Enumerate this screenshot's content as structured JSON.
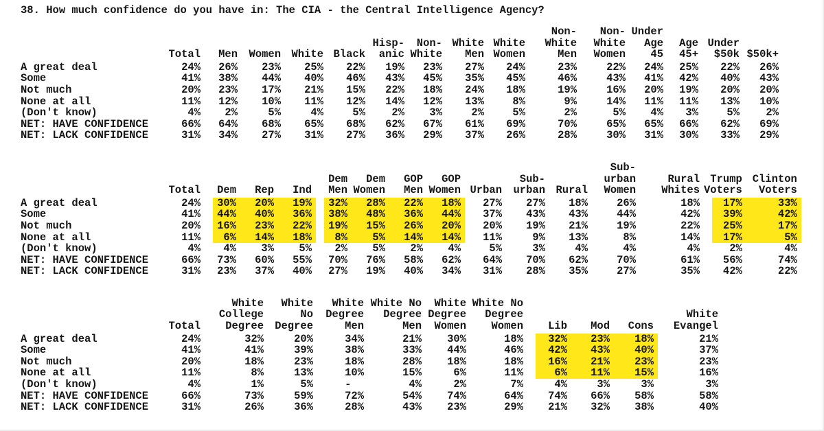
{
  "title": "38. How much confidence do you have in: The CIA - the Central Intelligence Agency?",
  "highlight_color": "#ffe719",
  "tables": [
    {
      "name": "demographics",
      "columns": [
        [
          "Total"
        ],
        [
          "Men"
        ],
        [
          "Women"
        ],
        [
          "White"
        ],
        [
          "Black"
        ],
        [
          "Hisp-",
          "anic"
        ],
        [
          "Non-",
          "White"
        ],
        [
          "White",
          "Men"
        ],
        [
          "White",
          "Women"
        ],
        [
          "Non-",
          "White",
          "Men"
        ],
        [
          "Non-",
          "White",
          "Women"
        ],
        [
          "Under",
          "Age 45"
        ],
        [
          "Age",
          "45+"
        ],
        [
          "Under",
          "$50k"
        ],
        [
          "$50k+"
        ]
      ],
      "rows": [
        {
          "label": "A great deal",
          "cells": [
            "24%",
            "26%",
            "23%",
            "25%",
            "22%",
            "19%",
            "23%",
            "27%",
            "24%",
            "23%",
            "22%",
            "24%",
            "25%",
            "22%",
            "26%"
          ]
        },
        {
          "label": "Some",
          "cells": [
            "41%",
            "38%",
            "44%",
            "40%",
            "46%",
            "43%",
            "45%",
            "35%",
            "45%",
            "46%",
            "43%",
            "41%",
            "42%",
            "40%",
            "43%"
          ]
        },
        {
          "label": "Not much",
          "cells": [
            "20%",
            "23%",
            "17%",
            "21%",
            "15%",
            "22%",
            "18%",
            "24%",
            "18%",
            "19%",
            "16%",
            "20%",
            "19%",
            "20%",
            "20%"
          ]
        },
        {
          "label": "None at all",
          "cells": [
            "11%",
            "12%",
            "10%",
            "11%",
            "12%",
            "14%",
            "12%",
            "13%",
            "8%",
            "9%",
            "14%",
            "11%",
            "11%",
            "13%",
            "10%"
          ]
        },
        {
          "label": "(Don't know)",
          "cells": [
            "4%",
            "2%",
            "5%",
            "4%",
            "5%",
            "2%",
            "3%",
            "2%",
            "5%",
            "2%",
            "5%",
            "4%",
            "3%",
            "5%",
            "2%"
          ]
        },
        {
          "label": "NET: HAVE CONFIDENCE",
          "cells": [
            "66%",
            "64%",
            "68%",
            "65%",
            "68%",
            "62%",
            "67%",
            "61%",
            "69%",
            "70%",
            "65%",
            "65%",
            "66%",
            "62%",
            "69%"
          ]
        },
        {
          "label": "NET: LACK CONFIDENCE",
          "cells": [
            "31%",
            "34%",
            "27%",
            "31%",
            "27%",
            "36%",
            "29%",
            "37%",
            "26%",
            "28%",
            "30%",
            "31%",
            "30%",
            "33%",
            "29%"
          ]
        }
      ],
      "highlights": null
    },
    {
      "name": "politics-geography",
      "columns": [
        [
          "Total"
        ],
        [
          "Dem"
        ],
        [
          "Rep"
        ],
        [
          "Ind"
        ],
        [
          "Dem",
          "Men"
        ],
        [
          "Dem",
          "Women"
        ],
        [
          "GOP",
          "Men"
        ],
        [
          "GOP",
          "Women"
        ],
        [
          "Urban"
        ],
        [
          "Sub-",
          "urban"
        ],
        [
          "Rural"
        ],
        [
          "Sub-",
          "urban",
          "Women"
        ],
        [
          "Rural",
          "Whites"
        ],
        [
          "Trump",
          "Voters"
        ],
        [
          "Clinton",
          "Voters"
        ]
      ],
      "rows": [
        {
          "label": "A great deal",
          "cells": [
            "24%",
            "30%",
            "20%",
            "19%",
            "32%",
            "28%",
            "22%",
            "18%",
            "27%",
            "27%",
            "18%",
            "26%",
            "18%",
            "17%",
            "33%"
          ]
        },
        {
          "label": "Some",
          "cells": [
            "41%",
            "44%",
            "40%",
            "36%",
            "38%",
            "48%",
            "36%",
            "44%",
            "37%",
            "43%",
            "43%",
            "44%",
            "42%",
            "39%",
            "42%"
          ]
        },
        {
          "label": "Not much",
          "cells": [
            "20%",
            "16%",
            "23%",
            "22%",
            "19%",
            "15%",
            "26%",
            "20%",
            "20%",
            "19%",
            "21%",
            "19%",
            "22%",
            "25%",
            "17%"
          ]
        },
        {
          "label": "None at all",
          "cells": [
            "11%",
            "6%",
            "14%",
            "18%",
            "8%",
            "5%",
            "14%",
            "14%",
            "11%",
            "9%",
            "13%",
            "8%",
            "14%",
            "17%",
            "5%"
          ]
        },
        {
          "label": "(Don't know)",
          "cells": [
            "4%",
            "4%",
            "3%",
            "5%",
            "2%",
            "5%",
            "2%",
            "4%",
            "5%",
            "3%",
            "4%",
            "4%",
            "4%",
            "2%",
            "4%"
          ]
        },
        {
          "label": "NET: HAVE CONFIDENCE",
          "cells": [
            "66%",
            "73%",
            "60%",
            "55%",
            "70%",
            "76%",
            "58%",
            "62%",
            "64%",
            "70%",
            "62%",
            "70%",
            "61%",
            "56%",
            "74%"
          ]
        },
        {
          "label": "NET: LACK CONFIDENCE",
          "cells": [
            "31%",
            "23%",
            "37%",
            "40%",
            "27%",
            "19%",
            "40%",
            "34%",
            "31%",
            "28%",
            "35%",
            "27%",
            "35%",
            "42%",
            "22%"
          ]
        }
      ],
      "highlights": {
        "rows": [
          0,
          1,
          2,
          3
        ],
        "col_groups": [
          [
            1,
            2,
            3
          ],
          [
            4,
            5,
            6,
            7
          ],
          [
            13,
            14
          ]
        ]
      }
    },
    {
      "name": "education-ideology",
      "columns": [
        [
          "Total"
        ],
        [
          "White",
          "College",
          "Degree"
        ],
        [
          "White",
          "No",
          "Degree"
        ],
        [
          "White",
          "Degree",
          "Men"
        ],
        [
          "White No",
          "Degree",
          "Men"
        ],
        [
          "White",
          "Degree",
          "Women"
        ],
        [
          "White No",
          "Degree",
          "Women"
        ],
        [
          "Lib"
        ],
        [
          "Mod"
        ],
        [
          "Cons"
        ],
        [
          "White",
          "Evangel"
        ]
      ],
      "rows": [
        {
          "label": "A great deal",
          "cells": [
            "24%",
            "32%",
            "20%",
            "34%",
            "21%",
            "30%",
            "18%",
            "32%",
            "23%",
            "18%",
            "21%"
          ]
        },
        {
          "label": "Some",
          "cells": [
            "41%",
            "41%",
            "39%",
            "38%",
            "33%",
            "44%",
            "46%",
            "42%",
            "43%",
            "40%",
            "37%"
          ]
        },
        {
          "label": "Not much",
          "cells": [
            "20%",
            "18%",
            "23%",
            "18%",
            "28%",
            "18%",
            "18%",
            "16%",
            "21%",
            "23%",
            "23%"
          ]
        },
        {
          "label": "None at all",
          "cells": [
            "11%",
            "8%",
            "13%",
            "10%",
            "15%",
            "6%",
            "11%",
            "6%",
            "11%",
            "15%",
            "16%"
          ]
        },
        {
          "label": "(Don't know)",
          "cells": [
            "4%",
            "1%",
            "5%",
            "-  ",
            "4%",
            "2%",
            "7%",
            "4%",
            "3%",
            "3%",
            "3%"
          ]
        },
        {
          "label": "NET: HAVE CONFIDENCE",
          "cells": [
            "66%",
            "73%",
            "59%",
            "72%",
            "54%",
            "74%",
            "64%",
            "74%",
            "66%",
            "58%",
            "58%"
          ]
        },
        {
          "label": "NET: LACK CONFIDENCE",
          "cells": [
            "31%",
            "26%",
            "36%",
            "28%",
            "43%",
            "23%",
            "29%",
            "21%",
            "32%",
            "38%",
            "40%"
          ]
        }
      ],
      "highlights": {
        "rows": [
          0,
          1,
          2,
          3
        ],
        "col_groups": [
          [
            7,
            8,
            9
          ]
        ]
      }
    }
  ]
}
